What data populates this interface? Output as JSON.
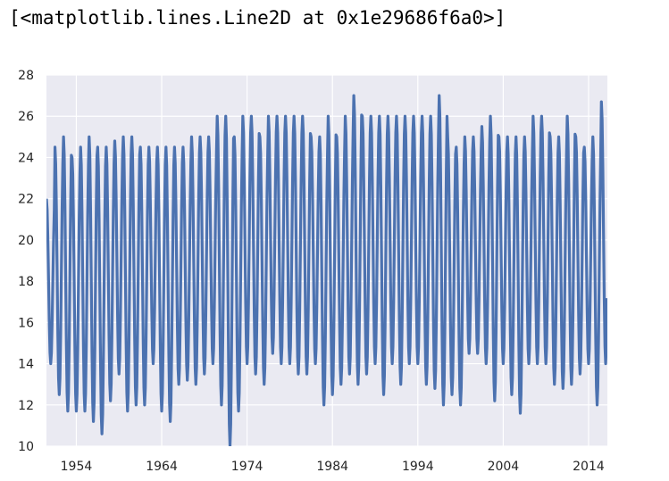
{
  "output_repr": "[<matplotlib.lines.Line2D at 0x1e29686f6a0>]",
  "colors": {
    "plot_bg": "#EAEAF2",
    "grid": "#FFFFFF",
    "line": "#4C72B0"
  },
  "chart_data": {
    "type": "line",
    "title": "",
    "xlabel": "",
    "ylabel": "",
    "xlim": [
      1950.5,
      2016.2
    ],
    "ylim": [
      10,
      28
    ],
    "xticks": [
      1954,
      1964,
      1974,
      1984,
      1994,
      2004,
      2014
    ],
    "xtick_labels": [
      "1954",
      "1964",
      "1974",
      "1984",
      "1994",
      "2004",
      "2014"
    ],
    "yticks": [
      10,
      12,
      14,
      16,
      18,
      20,
      22,
      24,
      26,
      28
    ],
    "ytick_labels": [
      "10",
      "12",
      "14",
      "16",
      "18",
      "20",
      "22",
      "24",
      "26",
      "28"
    ],
    "grid": true,
    "series": [
      {
        "frequency": "monthly",
        "start": 1950.5,
        "annual_max": [
          22,
          24.5,
          25,
          24,
          24.5,
          25,
          24.5,
          24.5,
          24.8,
          25,
          25,
          24.5,
          24.5,
          24.5,
          24.5,
          24.5,
          24.5,
          25,
          25,
          25,
          26,
          26,
          25,
          26,
          26,
          25,
          26,
          26,
          26,
          26,
          26,
          25,
          25,
          26,
          25,
          26,
          27,
          26,
          26,
          26,
          26,
          26,
          26,
          26,
          26,
          26,
          27,
          25,
          24.5,
          25,
          25,
          25.5,
          26,
          25,
          25,
          25,
          25,
          26,
          26,
          25,
          25,
          26,
          25,
          24.5,
          25,
          26.7
        ],
        "annual_min": [
          14,
          12.5,
          11.7,
          11.7,
          11.7,
          11.2,
          10.6,
          12.2,
          13.5,
          11.7,
          12,
          12,
          14,
          11.7,
          11.2,
          13,
          13.2,
          13,
          13.5,
          14,
          12,
          10,
          11.7,
          14,
          13.5,
          13,
          14.5,
          14,
          14,
          13.5,
          13.5,
          14,
          12,
          12.5,
          13,
          13.5,
          13,
          13.5,
          14,
          12.5,
          14,
          13,
          14,
          14,
          13,
          12.8,
          12,
          12.5,
          12,
          14.5,
          14.5,
          14,
          12.2,
          14,
          12.5,
          11.6,
          14,
          14,
          14,
          13,
          12.8,
          13,
          13.5,
          14,
          12,
          14
        ]
      }
    ]
  }
}
